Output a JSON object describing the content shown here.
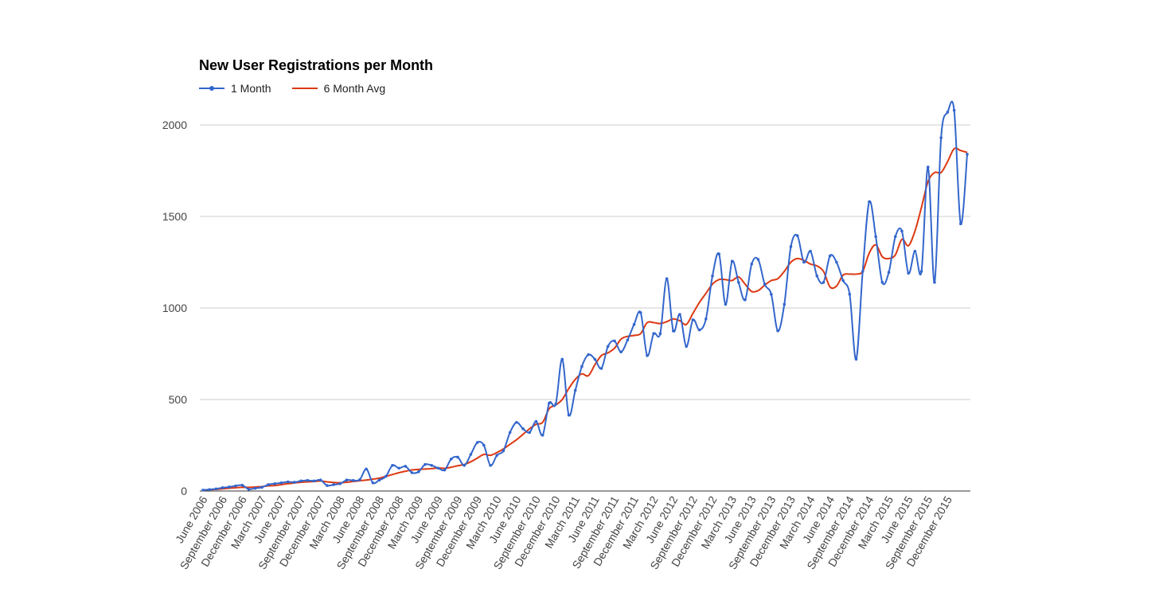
{
  "chart_data": {
    "type": "line",
    "title": "New User Registrations per Month",
    "xlabel": "",
    "ylabel": "",
    "ylim": [
      0,
      2200
    ],
    "yticks": [
      0,
      500,
      1000,
      1500,
      2000
    ],
    "grid": true,
    "legend_position": "top-left",
    "tick_labels": [
      "June 2006",
      "September 2006",
      "December 2006",
      "March 2007",
      "June 2007",
      "September 2007",
      "December 2007",
      "March 2008",
      "June 2008",
      "September 2008",
      "December 2008",
      "March 2009",
      "June 2009",
      "September 2009",
      "December 2009",
      "March 2010",
      "June 2010",
      "September 2010",
      "December 2010",
      "March 2011",
      "June 2011",
      "September 2011",
      "December 2011",
      "March 2012",
      "June 2012",
      "September 2012",
      "December 2012",
      "March 2013",
      "June 2013",
      "September 2013",
      "December 2013",
      "March 2014",
      "June 2014",
      "September 2014",
      "December 2014",
      "March 2015",
      "June 2015",
      "September 2015",
      "December 2015"
    ],
    "series": [
      {
        "name": "1 Month",
        "color": "#3366cc",
        "values": [
          5,
          8,
          12,
          18,
          22,
          28,
          32,
          10,
          15,
          20,
          35,
          40,
          45,
          50,
          48,
          55,
          58,
          55,
          60,
          30,
          35,
          40,
          60,
          58,
          62,
          120,
          45,
          60,
          80,
          140,
          125,
          135,
          100,
          105,
          145,
          140,
          125,
          115,
          175,
          185,
          140,
          200,
          265,
          250,
          140,
          195,
          220,
          320,
          375,
          340,
          320,
          380,
          305,
          480,
          475,
          720,
          415,
          550,
          680,
          745,
          720,
          670,
          790,
          820,
          760,
          825,
          910,
          975,
          740,
          860,
          860,
          1160,
          875,
          965,
          790,
          935,
          880,
          940,
          1175,
          1295,
          1020,
          1255,
          1140,
          1045,
          1240,
          1265,
          1130,
          1075,
          875,
          1020,
          1335,
          1395,
          1250,
          1310,
          1175,
          1140,
          1285,
          1250,
          1150,
          1075,
          720,
          1200,
          1580,
          1390,
          1140,
          1195,
          1390,
          1420,
          1190,
          1310,
          1200,
          1770,
          1140,
          1930,
          2070,
          2080,
          1460,
          1840
        ]
      },
      {
        "name": "6 Month Avg",
        "color": "#dc3912",
        "values": [
          5,
          7,
          9,
          12,
          15,
          18,
          20,
          20,
          22,
          24,
          28,
          30,
          35,
          40,
          44,
          48,
          50,
          52,
          55,
          50,
          47,
          45,
          48,
          52,
          56,
          60,
          65,
          70,
          80,
          90,
          100,
          108,
          115,
          118,
          120,
          122,
          126,
          124,
          130,
          138,
          145,
          160,
          180,
          200,
          195,
          210,
          230,
          255,
          280,
          310,
          340,
          365,
          375,
          450,
          470,
          500,
          560,
          610,
          640,
          630,
          690,
          740,
          755,
          780,
          830,
          845,
          850,
          860,
          920,
          920,
          915,
          925,
          940,
          930,
          910,
          970,
          1030,
          1080,
          1130,
          1155,
          1155,
          1150,
          1170,
          1130,
          1090,
          1095,
          1125,
          1150,
          1160,
          1200,
          1250,
          1270,
          1260,
          1240,
          1230,
          1200,
          1115,
          1120,
          1180,
          1185,
          1185,
          1200,
          1300,
          1345,
          1280,
          1270,
          1290,
          1375,
          1340,
          1420,
          1550,
          1690,
          1740,
          1740,
          1800,
          1870,
          1860,
          1850
        ]
      }
    ]
  }
}
